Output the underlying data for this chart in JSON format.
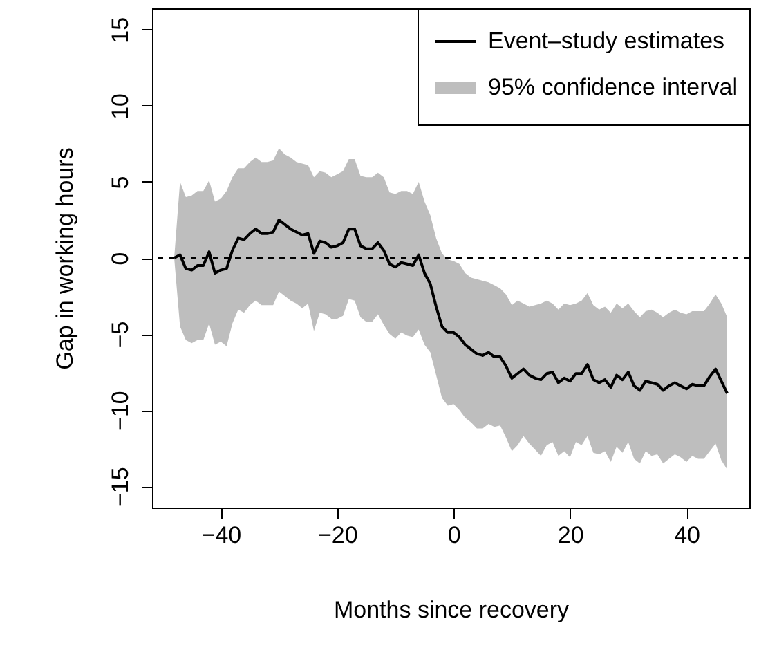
{
  "chart_data": {
    "type": "line",
    "xlabel": "Months since recovery",
    "ylabel": "Gap in working hours",
    "annotations": [
      "95% confidence interval"
    ],
    "x": [
      -48,
      -47,
      -46,
      -45,
      -44,
      -43,
      -42,
      -41,
      -40,
      -39,
      -38,
      -37,
      -36,
      -35,
      -34,
      -33,
      -32,
      -31,
      -30,
      -29,
      -28,
      -27,
      -26,
      -25,
      -24,
      -23,
      -22,
      -21,
      -20,
      -19,
      -18,
      -17,
      -16,
      -15,
      -14,
      -13,
      -12,
      -11,
      -10,
      -9,
      -8,
      -7,
      -6,
      -5,
      -4,
      -3,
      -2,
      -1,
      0,
      1,
      2,
      3,
      4,
      5,
      6,
      7,
      8,
      9,
      10,
      11,
      12,
      13,
      14,
      15,
      16,
      17,
      18,
      19,
      20,
      21,
      22,
      23,
      24,
      25,
      26,
      27,
      28,
      29,
      30,
      31,
      32,
      33,
      34,
      35,
      36,
      37,
      38,
      39,
      40,
      41,
      42,
      43,
      44,
      45,
      46,
      47
    ],
    "series": [
      {
        "name": "Event–study estimates",
        "color": "#000000",
        "values": [
          0,
          0.2,
          -0.7,
          -0.8,
          -0.5,
          -0.5,
          0.4,
          -1.0,
          -0.8,
          -0.7,
          0.5,
          1.3,
          1.2,
          1.6,
          1.9,
          1.6,
          1.6,
          1.7,
          2.5,
          2.2,
          1.9,
          1.7,
          1.5,
          1.6,
          0.3,
          1.1,
          1.0,
          0.7,
          0.8,
          1.0,
          1.9,
          1.9,
          0.8,
          0.6,
          0.6,
          1.0,
          0.5,
          -0.4,
          -0.6,
          -0.3,
          -0.4,
          -0.5,
          0.2,
          -1.0,
          -1.7,
          -3.2,
          -4.5,
          -4.9,
          -4.9,
          -5.2,
          -5.7,
          -6.0,
          -6.3,
          -6.4,
          -6.2,
          -6.5,
          -6.5,
          -7.1,
          -7.9,
          -7.6,
          -7.3,
          -7.7,
          -7.9,
          -8.0,
          -7.6,
          -7.5,
          -8.2,
          -7.9,
          -8.1,
          -7.6,
          -7.6,
          -7.0,
          -8.0,
          -8.2,
          -8.0,
          -8.5,
          -7.7,
          -8.0,
          -7.5,
          -8.4,
          -8.7,
          -8.1,
          -8.2,
          -8.3,
          -8.7,
          -8.4,
          -8.2,
          -8.4,
          -8.6,
          -8.3,
          -8.4,
          -8.4,
          -7.8,
          -7.3,
          -8.1,
          -8.9
        ],
        "upper": [
          0,
          5.0,
          4.0,
          4.1,
          4.4,
          4.4,
          5.1,
          3.7,
          3.9,
          4.4,
          5.3,
          5.9,
          5.9,
          6.3,
          6.6,
          6.3,
          6.3,
          6.4,
          7.2,
          6.8,
          6.6,
          6.3,
          6.2,
          6.1,
          5.3,
          5.7,
          5.6,
          5.3,
          5.5,
          5.7,
          6.5,
          6.5,
          5.4,
          5.3,
          5.3,
          5.6,
          5.3,
          4.3,
          4.2,
          4.4,
          4.4,
          4.2,
          5.0,
          3.7,
          2.8,
          1.3,
          0.3,
          -0.1,
          -0.2,
          -0.4,
          -1.0,
          -1.3,
          -1.4,
          -1.5,
          -1.6,
          -1.8,
          -2.0,
          -2.4,
          -3.1,
          -2.8,
          -3.0,
          -3.2,
          -3.1,
          -3.0,
          -2.8,
          -3.0,
          -3.4,
          -3.0,
          -3.1,
          -3.0,
          -2.8,
          -2.3,
          -3.1,
          -3.4,
          -3.2,
          -3.6,
          -3.0,
          -3.3,
          -3.0,
          -3.5,
          -3.9,
          -3.5,
          -3.4,
          -3.6,
          -3.9,
          -3.6,
          -3.4,
          -3.6,
          -3.7,
          -3.5,
          -3.5,
          -3.5,
          -3.0,
          -2.4,
          -3.0,
          -3.9
        ],
        "lower": [
          0,
          -4.5,
          -5.4,
          -5.6,
          -5.4,
          -5.4,
          -4.3,
          -5.7,
          -5.5,
          -5.8,
          -4.3,
          -3.4,
          -3.6,
          -3.1,
          -2.8,
          -3.1,
          -3.1,
          -3.1,
          -2.2,
          -2.5,
          -2.8,
          -3.0,
          -3.3,
          -3.0,
          -4.8,
          -3.6,
          -3.7,
          -4.0,
          -4.0,
          -3.8,
          -2.7,
          -2.8,
          -3.9,
          -4.2,
          -4.2,
          -3.7,
          -4.4,
          -5.0,
          -5.3,
          -4.9,
          -5.1,
          -5.2,
          -4.7,
          -5.7,
          -6.2,
          -7.7,
          -9.2,
          -9.7,
          -9.6,
          -10.0,
          -10.5,
          -10.8,
          -11.2,
          -11.2,
          -10.9,
          -11.1,
          -11.0,
          -11.8,
          -12.7,
          -12.3,
          -11.7,
          -12.2,
          -12.6,
          -13.0,
          -12.3,
          -12.1,
          -13.0,
          -12.7,
          -13.1,
          -12.1,
          -12.3,
          -11.7,
          -12.8,
          -12.9,
          -12.7,
          -13.4,
          -12.4,
          -12.8,
          -12.1,
          -13.2,
          -13.5,
          -12.7,
          -13.0,
          -12.9,
          -13.5,
          -13.2,
          -12.9,
          -13.1,
          -13.4,
          -13.0,
          -13.2,
          -13.2,
          -12.7,
          -12.2,
          -13.3,
          -13.9
        ]
      }
    ],
    "xlim": [
      -51.8,
      50.8
    ],
    "xticks": [
      -40,
      -20,
      0,
      20,
      40
    ],
    "ylim": [
      -16.4,
      16.4
    ],
    "yticks": [
      -15,
      -10,
      -5,
      0,
      5,
      10,
      15
    ],
    "ref_lines": [
      {
        "axis": "y",
        "value": 0,
        "color": "#000000",
        "line_style": "dashed"
      }
    ],
    "legend": "top right",
    "marker": "none"
  }
}
